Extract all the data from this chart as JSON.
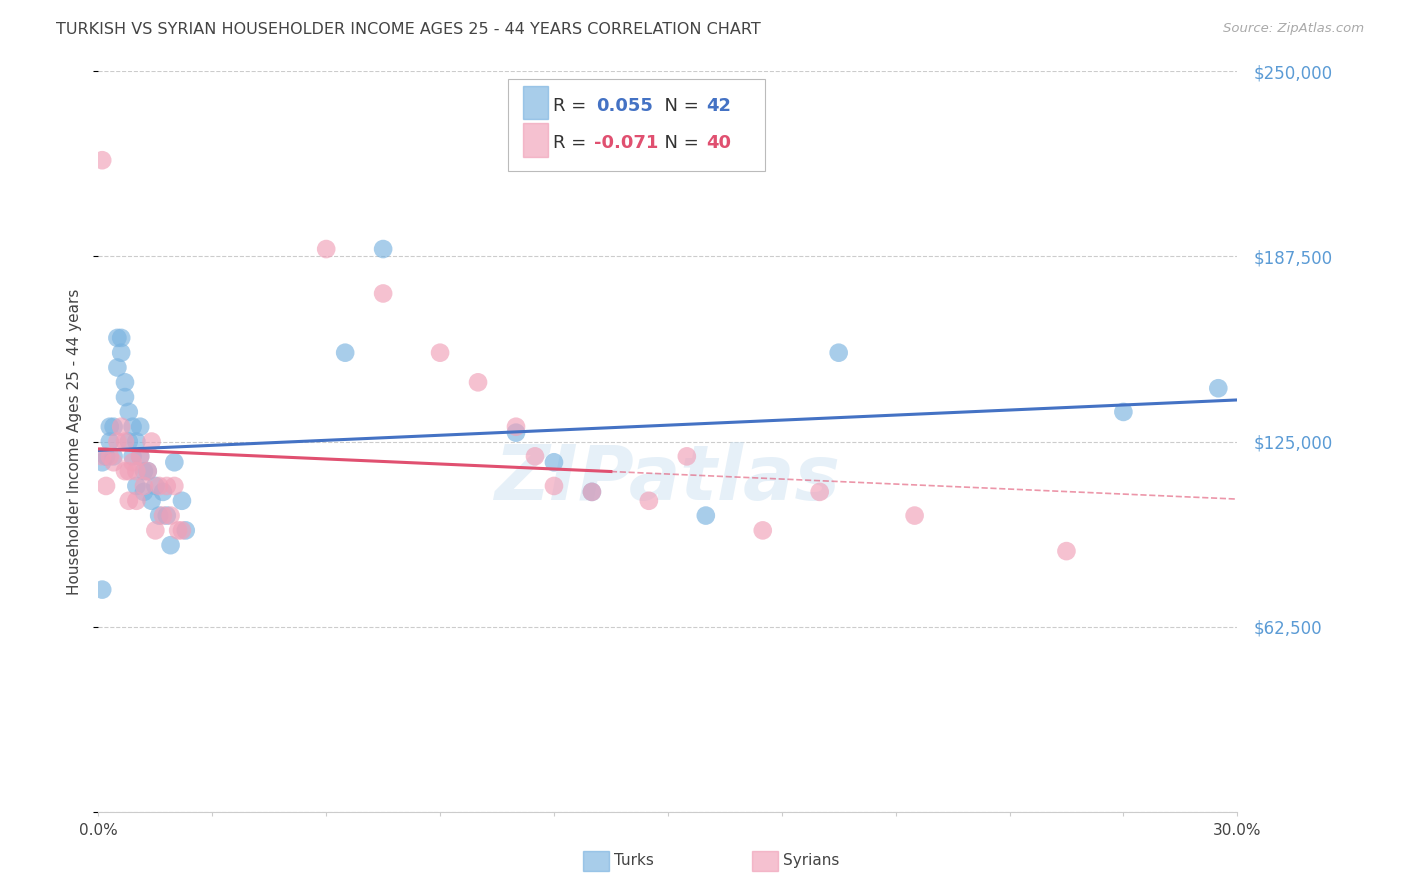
{
  "title": "TURKISH VS SYRIAN HOUSEHOLDER INCOME AGES 25 - 44 YEARS CORRELATION CHART",
  "source": "Source: ZipAtlas.com",
  "ylabel": "Householder Income Ages 25 - 44 years",
  "xlim": [
    0.0,
    0.3
  ],
  "ylim": [
    0,
    250000
  ],
  "yticks": [
    0,
    62500,
    125000,
    187500,
    250000
  ],
  "ytick_labels": [
    "",
    "$62,500",
    "$125,000",
    "$187,500",
    "$250,000"
  ],
  "background_color": "#ffffff",
  "watermark": "ZIPatlas",
  "turks_color": "#7ab3e0",
  "syrians_color": "#f0a0b8",
  "turks_R": 0.055,
  "turks_N": 42,
  "syrians_R": -0.071,
  "syrians_N": 40,
  "turks_x": [
    0.001,
    0.002,
    0.003,
    0.003,
    0.004,
    0.004,
    0.005,
    0.005,
    0.006,
    0.006,
    0.007,
    0.007,
    0.008,
    0.008,
    0.009,
    0.009,
    0.01,
    0.01,
    0.011,
    0.011,
    0.012,
    0.012,
    0.013,
    0.014,
    0.015,
    0.016,
    0.017,
    0.018,
    0.019,
    0.02,
    0.022,
    0.023,
    0.065,
    0.075,
    0.11,
    0.12,
    0.13,
    0.16,
    0.195,
    0.27,
    0.295,
    0.001
  ],
  "turks_y": [
    118000,
    120000,
    125000,
    130000,
    130000,
    120000,
    150000,
    160000,
    155000,
    160000,
    145000,
    140000,
    125000,
    135000,
    130000,
    120000,
    125000,
    110000,
    130000,
    120000,
    115000,
    108000,
    115000,
    105000,
    110000,
    100000,
    108000,
    100000,
    90000,
    118000,
    105000,
    95000,
    155000,
    190000,
    128000,
    118000,
    108000,
    100000,
    155000,
    135000,
    143000,
    75000
  ],
  "syrians_x": [
    0.001,
    0.002,
    0.003,
    0.004,
    0.005,
    0.006,
    0.007,
    0.007,
    0.008,
    0.008,
    0.009,
    0.01,
    0.01,
    0.011,
    0.012,
    0.013,
    0.014,
    0.015,
    0.016,
    0.017,
    0.018,
    0.019,
    0.02,
    0.021,
    0.022,
    0.06,
    0.075,
    0.09,
    0.1,
    0.11,
    0.115,
    0.12,
    0.13,
    0.145,
    0.155,
    0.175,
    0.19,
    0.215,
    0.255,
    0.001
  ],
  "syrians_y": [
    120000,
    110000,
    120000,
    118000,
    125000,
    130000,
    125000,
    115000,
    115000,
    105000,
    118000,
    115000,
    105000,
    120000,
    110000,
    115000,
    125000,
    95000,
    110000,
    100000,
    110000,
    100000,
    110000,
    95000,
    95000,
    190000,
    175000,
    155000,
    145000,
    130000,
    120000,
    110000,
    108000,
    105000,
    120000,
    95000,
    108000,
    100000,
    88000,
    220000
  ],
  "turks_line_color": "#4472c4",
  "syrians_line_color": "#e05070",
  "legend_border_color": "#cccccc",
  "title_color": "#444444",
  "axis_label_color": "#444444",
  "ytick_color": "#5b9bd5",
  "grid_color": "#cccccc"
}
